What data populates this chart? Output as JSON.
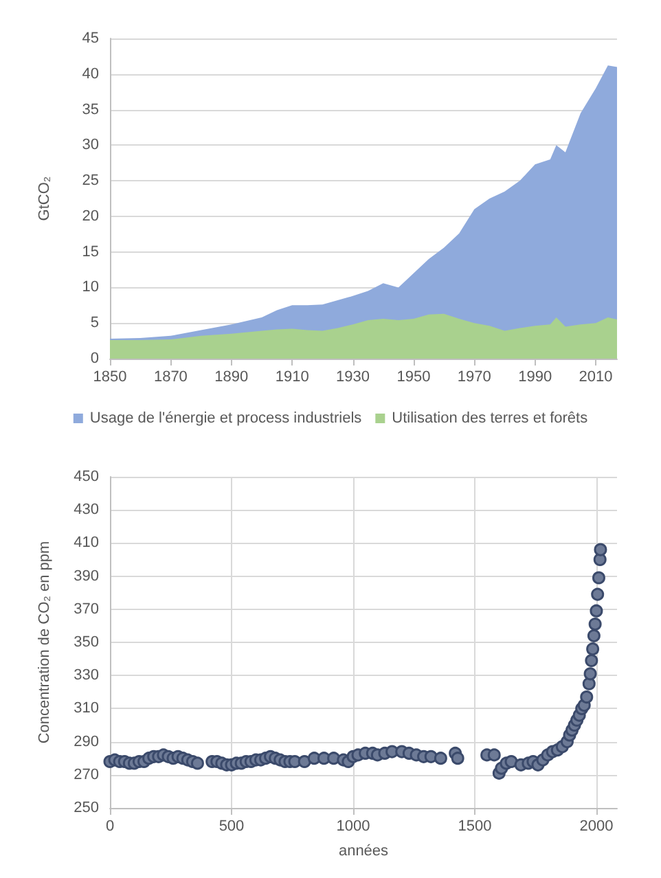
{
  "chart_data": [
    {
      "type": "area",
      "stacked": true,
      "ylabel": "GtCO₂",
      "xlim": [
        1850,
        2017
      ],
      "xticks": [
        1850,
        1870,
        1890,
        1910,
        1930,
        1950,
        1970,
        1990,
        2010
      ],
      "ylim": [
        0,
        45
      ],
      "yticks": [
        0,
        5,
        10,
        15,
        20,
        25,
        30,
        35,
        40,
        45
      ],
      "grid": "y",
      "legend": "bottom",
      "marker": "none",
      "x": [
        1850,
        1860,
        1870,
        1880,
        1890,
        1900,
        1905,
        1910,
        1915,
        1920,
        1925,
        1930,
        1935,
        1940,
        1945,
        1950,
        1955,
        1960,
        1965,
        1970,
        1975,
        1980,
        1985,
        1990,
        1995,
        1997,
        2000,
        2005,
        2010,
        2014,
        2017
      ],
      "series": [
        {
          "name": "Utilisation des terres et forêts",
          "color": "#a9d18e",
          "values": [
            2.6,
            2.6,
            2.7,
            3.2,
            3.5,
            3.9,
            4.1,
            4.2,
            4.0,
            3.9,
            4.3,
            4.8,
            5.4,
            5.6,
            5.4,
            5.6,
            6.2,
            6.3,
            5.6,
            5.0,
            4.6,
            3.9,
            4.3,
            4.6,
            4.8,
            5.8,
            4.5,
            4.8,
            5.0,
            5.8,
            5.5
          ]
        },
        {
          "name": "Usage de l'énergie et process industriels",
          "color": "#8faadc",
          "values": [
            0.2,
            0.3,
            0.5,
            0.8,
            1.3,
            1.9,
            2.7,
            3.3,
            3.5,
            3.7,
            3.9,
            4.0,
            4.1,
            5.0,
            4.6,
            6.4,
            7.8,
            9.3,
            12.0,
            16.0,
            17.9,
            19.6,
            20.7,
            22.7,
            23.2,
            24.2,
            24.5,
            29.7,
            33.0,
            35.4,
            35.5
          ]
        }
      ]
    },
    {
      "type": "scatter",
      "xlabel": "années",
      "ylabel": "Concentration de CO₂ en ppm",
      "xlim": [
        0,
        2085
      ],
      "xticks": [
        0,
        500,
        1000,
        1500,
        2000
      ],
      "ylim": [
        250,
        450
      ],
      "yticks": [
        250,
        270,
        290,
        310,
        330,
        350,
        370,
        390,
        410,
        430,
        450
      ],
      "grid": true,
      "marker": "circle",
      "series": [
        {
          "color": "#3b4a6b",
          "x": [
            0,
            20,
            40,
            60,
            80,
            100,
            120,
            140,
            160,
            180,
            200,
            220,
            240,
            260,
            280,
            300,
            320,
            340,
            360,
            420,
            440,
            460,
            480,
            500,
            520,
            540,
            560,
            580,
            600,
            620,
            640,
            660,
            680,
            700,
            720,
            740,
            760,
            800,
            840,
            880,
            920,
            960,
            980,
            1000,
            1020,
            1050,
            1080,
            1100,
            1130,
            1160,
            1200,
            1230,
            1260,
            1290,
            1320,
            1360,
            1420,
            1430,
            1550,
            1580,
            1600,
            1610,
            1630,
            1650,
            1690,
            1720,
            1740,
            1760,
            1780,
            1800,
            1820,
            1840,
            1860,
            1880,
            1890,
            1900,
            1910,
            1920,
            1930,
            1940,
            1950,
            1960,
            1970,
            1975,
            1980,
            1985,
            1990,
            1995,
            2000,
            2005,
            2010,
            2015,
            2017
          ],
          "values": [
            278,
            279,
            278,
            278,
            277,
            277,
            278,
            278,
            280,
            281,
            281,
            282,
            281,
            280,
            281,
            280,
            279,
            278,
            277,
            278,
            278,
            277,
            276,
            276,
            277,
            277,
            278,
            278,
            279,
            279,
            280,
            281,
            280,
            279,
            278,
            278,
            278,
            278,
            280,
            280,
            280,
            279,
            278,
            281,
            282,
            283,
            283,
            282,
            283,
            284,
            284,
            283,
            282,
            281,
            281,
            280,
            283,
            280,
            282,
            282,
            271,
            274,
            277,
            278,
            276,
            277,
            278,
            276,
            279,
            282,
            284,
            285,
            287,
            290,
            294,
            297,
            300,
            303,
            306,
            310,
            312,
            317,
            325,
            331,
            339,
            346,
            354,
            361,
            369,
            379,
            389,
            400,
            406
          ]
        }
      ]
    }
  ]
}
